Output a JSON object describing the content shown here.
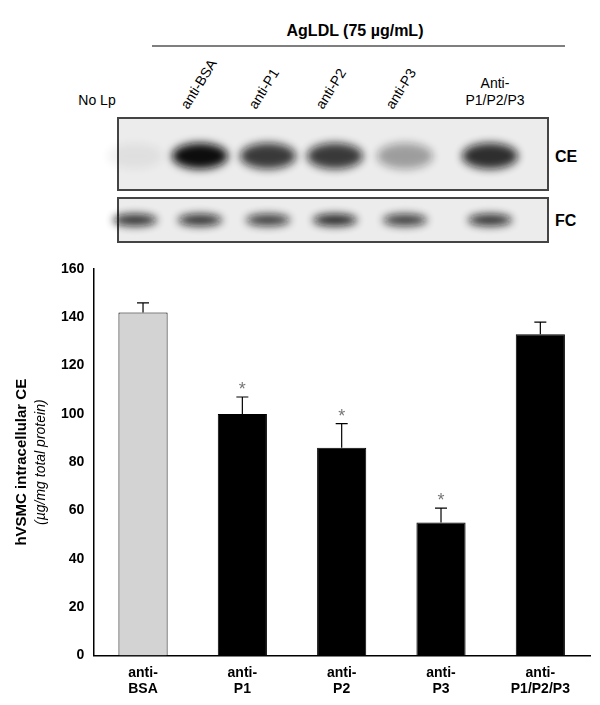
{
  "chart_data": {
    "type": "bar",
    "categories": [
      [
        "anti-",
        "BSA"
      ],
      [
        "anti-",
        "P1"
      ],
      [
        "anti-",
        "P2"
      ],
      [
        "anti-",
        "P3"
      ],
      [
        "anti-",
        "P1/P2/P3"
      ]
    ],
    "values": [
      142,
      100,
      86,
      55,
      133
    ],
    "errors": [
      4,
      7,
      10,
      6,
      5
    ],
    "colors": [
      "#d3d3d3",
      "#000000",
      "#000000",
      "#000000",
      "#000000"
    ],
    "y_label": [
      "hVSMC intracellular CE",
      "(µg/mg total protein)"
    ],
    "ylim": [
      0,
      160
    ],
    "yticks": [
      0,
      20,
      40,
      60,
      80,
      100,
      120,
      140,
      160
    ],
    "grid": false,
    "annotations": [
      {
        "index": 1,
        "text": "*"
      },
      {
        "index": 2,
        "text": "*"
      },
      {
        "index": 3,
        "text": "*"
      }
    ]
  },
  "blot": {
    "header": "AgLDL (75 µg/mL)",
    "lanes": [
      [
        "No Lp"
      ],
      [
        "anti-BSA"
      ],
      [
        "anti-P1"
      ],
      [
        "anti-P2"
      ],
      [
        "anti-P3"
      ],
      [
        "Anti-",
        "P1/P2/P3"
      ]
    ],
    "rows": [
      {
        "label": "CE",
        "intensity": [
          0.05,
          1.0,
          0.8,
          0.8,
          0.35,
          0.85
        ]
      },
      {
        "label": "FC",
        "intensity": [
          0.85,
          0.85,
          0.8,
          0.9,
          0.8,
          0.85
        ]
      }
    ]
  }
}
